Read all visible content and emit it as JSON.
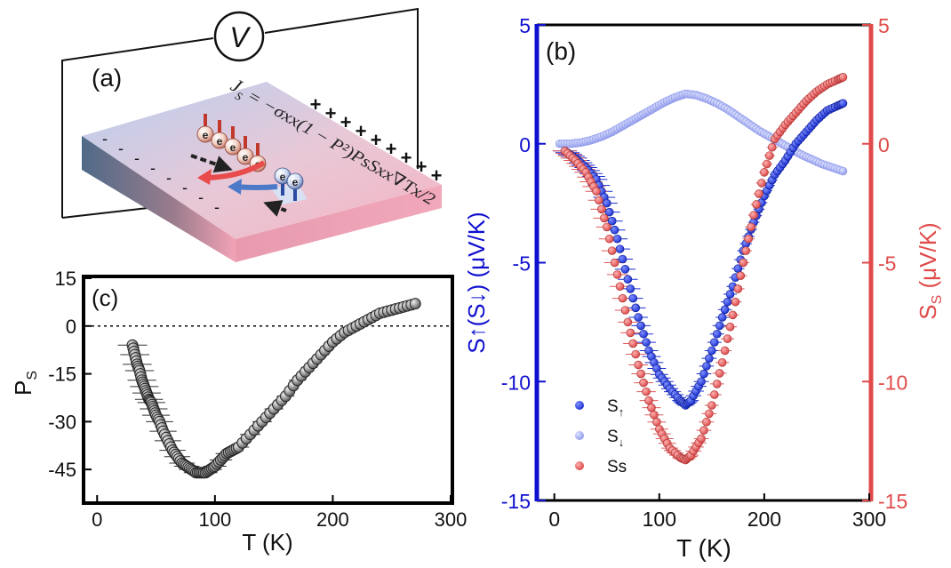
{
  "panel_a": {
    "label": "(a)",
    "voltmeter": "V",
    "electron": "e",
    "equation_lhs": "J",
    "equation_lhs_sub": "S",
    "equation_rhs": "= −σxx(1 − P²)PsSxx∇Tx/2",
    "top_edge_signs": [
      "+",
      "+",
      "+",
      "+",
      "+",
      "+",
      "+",
      "+",
      "+"
    ],
    "left_edge_signs": [
      "-",
      "-",
      "-",
      "-",
      "-",
      "-",
      "-",
      "-"
    ]
  },
  "colors": {
    "spin_up": "#1a2fd0",
    "spin_down": "#9aa3ee",
    "spin_sum": "#e05a5a",
    "left_axis": "#1010d0",
    "right_axis": "#e04a4a",
    "ps_marker": "#555555"
  },
  "chart_data": [
    {
      "id": "panel-c",
      "type": "scatter",
      "label": "(c)",
      "xlabel": "T (K)",
      "ylabel": "P",
      "ylabel_sub": "S",
      "xlim": [
        -10,
        300
      ],
      "ylim": [
        -55,
        15
      ],
      "xticks": [
        0,
        100,
        200,
        300
      ],
      "yticks": [
        15,
        0,
        -15,
        -30,
        -45
      ],
      "reference_line_y": 0,
      "series": [
        {
          "name": "Ps",
          "x": [
            30,
            32,
            34,
            36,
            38,
            40,
            42,
            44,
            46,
            48,
            50,
            53,
            56,
            60,
            64,
            68,
            72,
            76,
            80,
            84,
            88,
            92,
            96,
            100,
            105,
            110,
            115,
            120,
            130,
            140,
            150,
            160,
            170,
            180,
            190,
            200,
            210,
            220,
            230,
            240,
            250,
            260,
            270
          ],
          "y": [
            -6,
            -9,
            -12,
            -14,
            -17,
            -19,
            -21,
            -23,
            -24,
            -26,
            -28,
            -30,
            -33,
            -36,
            -39,
            -41,
            -43,
            -44,
            -45,
            -46,
            -46,
            -46,
            -45,
            -44,
            -42,
            -40,
            -39,
            -38,
            -34,
            -30,
            -26,
            -22,
            -17,
            -13,
            -9,
            -5,
            -2,
            0,
            2,
            4,
            5,
            6,
            7
          ]
        }
      ]
    },
    {
      "id": "panel-b",
      "type": "scatter",
      "label": "(b)",
      "xlabel": "T (K)",
      "ylabel_left": "S↑(S↓) (μV/K)",
      "ylabel_right": "S",
      "ylabel_right_sub": "S",
      "ylabel_right_unit": " (μV/K)",
      "xlim": [
        -15,
        300
      ],
      "ylim_left": [
        -15,
        5
      ],
      "ylim_right": [
        -15,
        5
      ],
      "xticks": [
        0,
        100,
        200,
        300
      ],
      "yticks_left": [
        5,
        0,
        -5,
        -10,
        -15
      ],
      "yticks_right": [
        5,
        0,
        -5,
        -10,
        -15
      ],
      "legend": [
        {
          "label": "S",
          "sub": "↑"
        },
        {
          "label": "S",
          "sub": "↓"
        },
        {
          "label": "Ss",
          "sub": ""
        }
      ],
      "legend_position": "bottom-left",
      "series": [
        {
          "name": "S↑",
          "x": [
            10,
            20,
            30,
            40,
            50,
            60,
            70,
            80,
            90,
            100,
            110,
            120,
            125,
            130,
            140,
            150,
            160,
            170,
            180,
            190,
            200,
            210,
            220,
            230,
            240,
            250,
            260,
            270,
            275
          ],
          "y": [
            -0.3,
            -0.6,
            -1.0,
            -1.5,
            -2.5,
            -4.0,
            -5.7,
            -7.3,
            -8.7,
            -9.7,
            -10.3,
            -10.8,
            -11.0,
            -10.8,
            -10.0,
            -8.7,
            -7.3,
            -6.0,
            -4.5,
            -3.3,
            -2.2,
            -1.3,
            -0.7,
            0.0,
            0.5,
            1.0,
            1.4,
            1.6,
            1.7
          ]
        },
        {
          "name": "S↓",
          "x": [
            5,
            15,
            25,
            35,
            45,
            55,
            65,
            75,
            85,
            95,
            105,
            115,
            125,
            135,
            145,
            155,
            165,
            175,
            185,
            195,
            205,
            215,
            225,
            235,
            245,
            255,
            265,
            275
          ],
          "y": [
            0.0,
            0.0,
            0.05,
            0.15,
            0.3,
            0.5,
            0.75,
            1.0,
            1.25,
            1.5,
            1.75,
            1.95,
            2.1,
            2.05,
            1.9,
            1.7,
            1.45,
            1.15,
            0.85,
            0.55,
            0.3,
            0.05,
            -0.2,
            -0.45,
            -0.65,
            -0.85,
            -1.0,
            -1.15
          ]
        },
        {
          "name": "Ss",
          "x": [
            10,
            20,
            30,
            40,
            50,
            60,
            70,
            80,
            90,
            100,
            110,
            120,
            125,
            130,
            140,
            150,
            160,
            170,
            180,
            190,
            200,
            210,
            220,
            230,
            240,
            250,
            260,
            270,
            275
          ],
          "y": [
            -0.3,
            -0.7,
            -1.2,
            -2.0,
            -3.5,
            -5.5,
            -7.5,
            -9.3,
            -10.8,
            -12.0,
            -12.8,
            -13.2,
            -13.3,
            -13.1,
            -12.4,
            -11.0,
            -9.2,
            -7.2,
            -5.0,
            -3.0,
            -1.2,
            0.2,
            0.8,
            1.3,
            1.8,
            2.2,
            2.5,
            2.7,
            2.8
          ]
        }
      ]
    }
  ]
}
